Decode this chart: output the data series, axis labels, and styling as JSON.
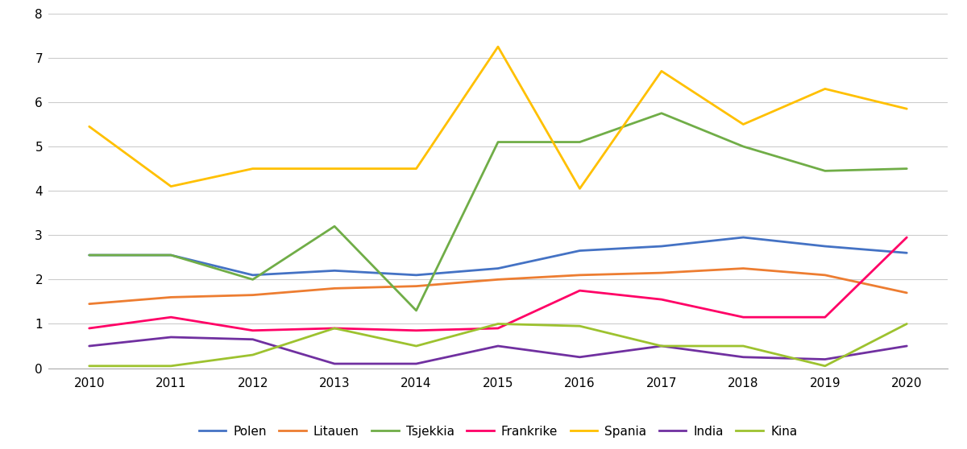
{
  "years": [
    2010,
    2011,
    2012,
    2013,
    2014,
    2015,
    2016,
    2017,
    2018,
    2019,
    2020
  ],
  "series": {
    "Polen": [
      2.55,
      2.55,
      2.1,
      2.2,
      2.1,
      2.25,
      2.65,
      2.75,
      2.95,
      2.75,
      2.6
    ],
    "Litauen": [
      1.45,
      1.6,
      1.65,
      1.8,
      1.85,
      2.0,
      2.1,
      2.15,
      2.25,
      2.1,
      1.7
    ],
    "Tsjekkia": [
      2.55,
      2.55,
      2.0,
      3.2,
      1.3,
      5.1,
      5.1,
      5.75,
      5.0,
      4.45,
      4.5
    ],
    "Frankrike": [
      0.9,
      1.15,
      0.85,
      0.9,
      0.85,
      0.9,
      1.75,
      1.55,
      1.15,
      1.15,
      2.95
    ],
    "Spania": [
      5.45,
      4.1,
      4.5,
      4.5,
      4.5,
      7.25,
      4.05,
      6.7,
      5.5,
      6.3,
      5.85
    ],
    "India": [
      0.5,
      0.7,
      0.65,
      0.1,
      0.1,
      0.5,
      0.25,
      0.5,
      0.25,
      0.2,
      0.5
    ],
    "Kina": [
      0.05,
      0.05,
      0.3,
      0.9,
      0.5,
      1.0,
      0.95,
      0.5,
      0.5,
      0.05,
      1.0
    ]
  },
  "colors": {
    "Polen": "#4472c4",
    "Litauen": "#ed7d31",
    "Tsjekkia": "#70ad47",
    "Frankrike": "#ff0066",
    "Spania": "#ffc000",
    "India": "#7030a0",
    "Kina": "#9dc22f"
  },
  "ylim": [
    0,
    8
  ],
  "yticks": [
    0,
    1,
    2,
    3,
    4,
    5,
    6,
    7,
    8
  ],
  "xticks": [
    2010,
    2011,
    2012,
    2013,
    2014,
    2015,
    2016,
    2017,
    2018,
    2019,
    2020
  ],
  "legend_order": [
    "Polen",
    "Litauen",
    "Tsjekkia",
    "Frankrike",
    "Spania",
    "India",
    "Kina"
  ],
  "background_color": "#ffffff",
  "grid_color": "#cccccc"
}
